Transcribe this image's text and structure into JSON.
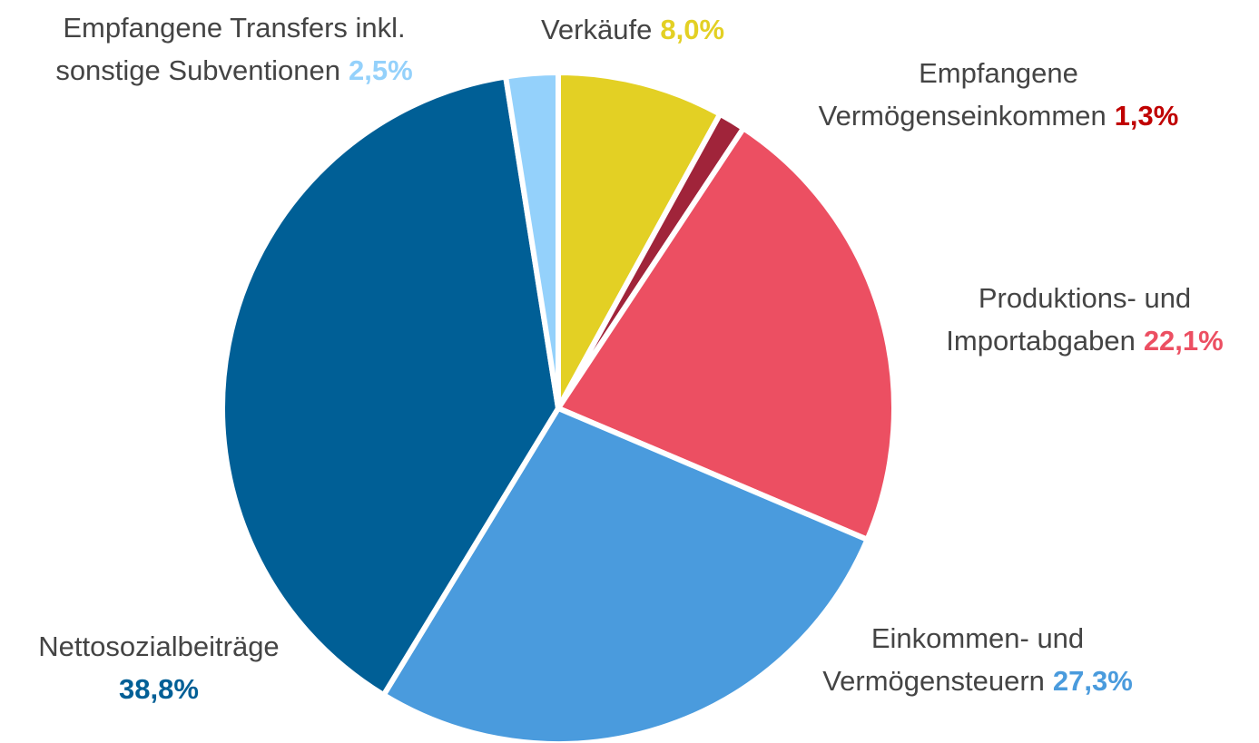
{
  "chart_data": {
    "type": "pie",
    "categories": [
      [
        "Verkäufe"
      ],
      [
        "Empfangene",
        "Vermögenseinkommen"
      ],
      [
        "Produktions- und",
        "Importabgaben"
      ],
      [
        "Einkommen- und",
        "Vermögensteuern"
      ],
      [
        "Nettosozialbeiträge"
      ],
      [
        "Empfangene Transfers inkl.",
        "sonstige Subventionen"
      ]
    ],
    "values": [
      8.0,
      1.3,
      22.1,
      27.3,
      38.8,
      2.5
    ],
    "value_labels": [
      "8,0%",
      "1,3%",
      "22,1%",
      "27,3%",
      "38,8%",
      "2,5%"
    ],
    "colors": [
      "#e3d024",
      "#a0243a",
      "#ec4f62",
      "#4a9bdd",
      "#005f96",
      "#94d1fb"
    ],
    "label_colors": [
      "#e3d024",
      "#c00000",
      "#ec4f62",
      "#4a9bdd",
      "#005f96",
      "#94d1fb"
    ]
  }
}
